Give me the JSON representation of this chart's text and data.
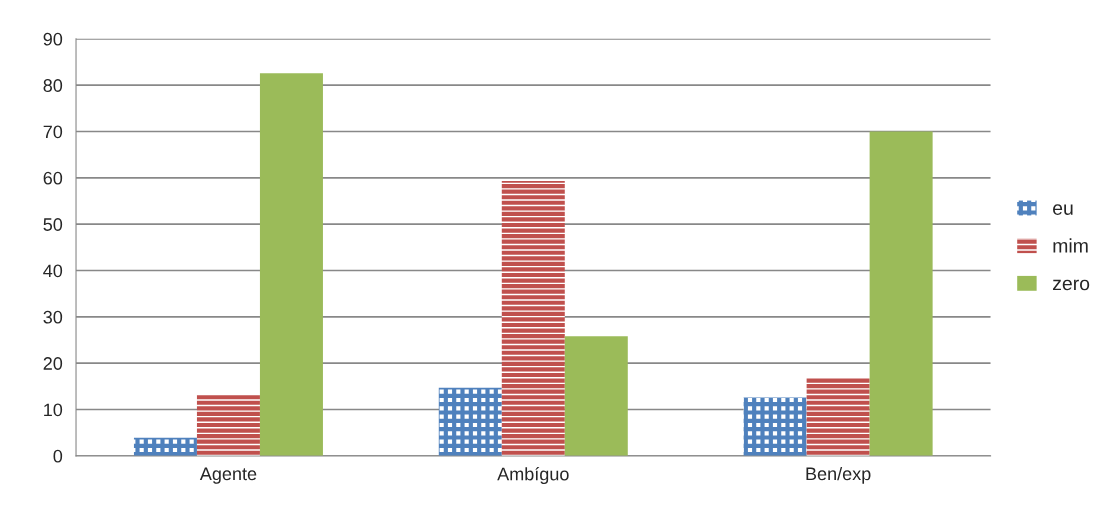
{
  "chart_data": {
    "type": "bar",
    "categories": [
      "Agente",
      "Ambíguo",
      "Ben/exp"
    ],
    "series": [
      {
        "name": "eu",
        "color": "#4f81bd",
        "values": [
          3.9,
          14.7,
          12.6
        ]
      },
      {
        "name": "mim",
        "color": "#c0504d",
        "values": [
          13.2,
          59.3,
          16.8
        ]
      },
      {
        "name": "zero",
        "color": "#9bbb59",
        "values": [
          82.6,
          25.8,
          70
        ]
      }
    ],
    "ylim": [
      0,
      90
    ],
    "yticks": [
      0,
      10,
      20,
      30,
      40,
      50,
      60,
      70,
      80,
      90
    ],
    "grid": "y",
    "legend": "right"
  }
}
